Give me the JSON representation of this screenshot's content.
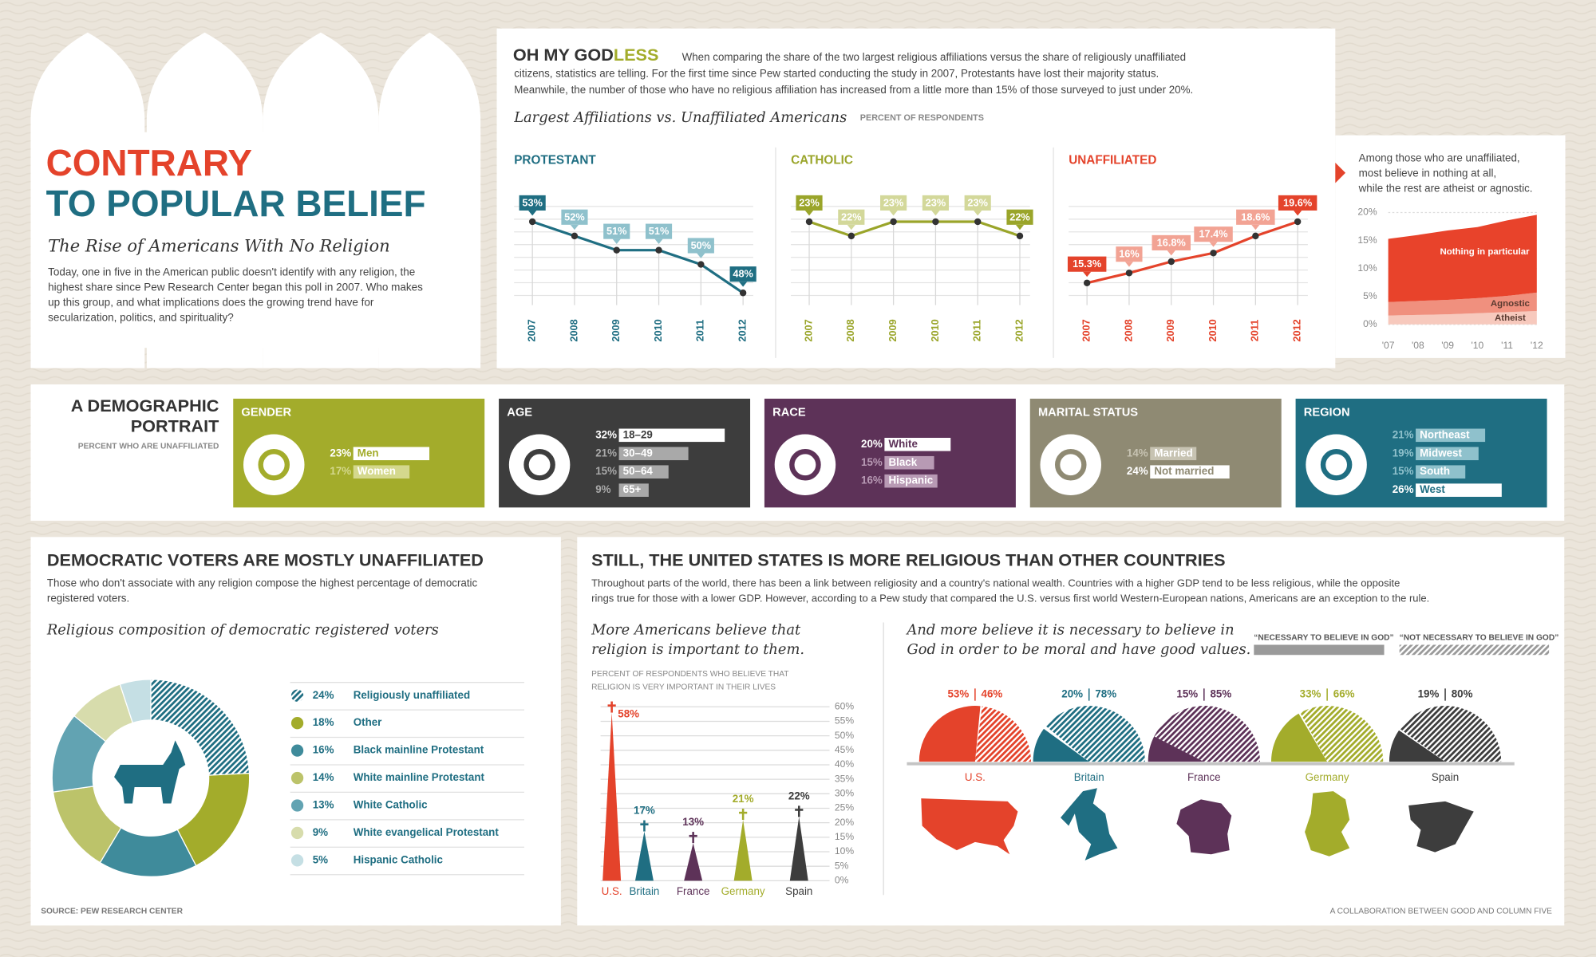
{
  "header": {
    "title_line1": "CONTRARY",
    "title_line2": "TO POPULAR BELIEF",
    "subtitle": "The Rise of Americans With No Religion",
    "intro": [
      "Today, one in five in the American public doesn't identify with any religion, the",
      "highest share since Pew Research Center began this poll in 2007. Who makes",
      "up this group, and what implications does the growing trend have for",
      "secularization, politics, and spirituality?"
    ]
  },
  "godless": {
    "heading": "OH MY GOD",
    "heading_accent": "LESS",
    "text": [
      "When comparing the share of the two largest religious affiliations versus the share of religiously unaffiliated",
      "citizens, statistics are telling. For the first time since Pew started conducting the study in 2007, Protestants have lost their majority status.",
      "Meanwhile, the number of those who have no religious affiliation has increased from a little more than 15% of those surveyed to just under 20%."
    ],
    "chart_title": "Largest Affiliations vs. Unaffiliated Americans",
    "chart_note": "PERCENT OF RESPONDENTS"
  },
  "demographics": {
    "title": [
      "A DEMOGRAPHIC",
      "PORTRAIT"
    ],
    "note": "PERCENT WHO ARE UNAFFILIATED"
  },
  "voters": {
    "heading": "DEMOCRATIC VOTERS ARE MOSTLY UNAFFILIATED",
    "text": [
      "Those who don't associate with any religion compose the highest percentage of democratic",
      "registered voters."
    ]
  },
  "world": {
    "heading": "STILL, THE UNITED STATES IS MORE RELIGIOUS THAN OTHER COUNTRIES",
    "text": [
      "Throughout parts of the world, there has been a link between religiosity and a country's national wealth. Countries with a higher GDP tend to be less religious, while the opposite",
      "rings true for those with a lower GDP. However, according to a Pew study that compared the U.S. versus first world Western-European nations, Americans are an exception to the rule."
    ]
  },
  "footer": {
    "source": "SOURCE:  PEW RESEARCH CENTER",
    "credit": "A COLLABORATION BETWEEN GOOD AND COLUMN FIVE"
  },
  "chart_data": [
    {
      "type": "line",
      "title": "PROTESTANT",
      "color": "#1f6e82",
      "light_color": "#8fc1cc",
      "categories": [
        "2007",
        "2008",
        "2009",
        "2010",
        "2011",
        "2012"
      ],
      "values": [
        53,
        52,
        51,
        51,
        50,
        48
      ],
      "value_labels": [
        "53%",
        "52%",
        "51%",
        "51%",
        "50%",
        "48%"
      ]
    },
    {
      "type": "line",
      "title": "CATHOLIC",
      "color": "#9aa52a",
      "light_color": "#d3d89a",
      "categories": [
        "2007",
        "2008",
        "2009",
        "2010",
        "2011",
        "2012"
      ],
      "values": [
        23,
        22,
        23,
        23,
        23,
        22
      ],
      "value_labels": [
        "23%",
        "22%",
        "23%",
        "23%",
        "23%",
        "22%"
      ]
    },
    {
      "type": "line",
      "title": "UNAFFILIATED",
      "color": "#e4432b",
      "light_color": "#f2a394",
      "categories": [
        "2007",
        "2008",
        "2009",
        "2010",
        "2011",
        "2012"
      ],
      "values": [
        15.3,
        16,
        16.8,
        17.4,
        18.6,
        19.6
      ],
      "value_labels": [
        "15.3%",
        "16%",
        "16.8%",
        "17.4%",
        "18.6%",
        "19.6%"
      ]
    },
    {
      "type": "area",
      "stacked": true,
      "title": [
        "Among those who are unaffiliated,",
        "most believe in nothing at all,",
        "while the rest are atheist or agnostic."
      ],
      "categories": [
        "'07",
        "'08",
        "'09",
        "'10",
        "'11",
        "'12"
      ],
      "ylim": [
        0,
        20
      ],
      "yticks": [
        {
          "value": 0,
          "label": "0%"
        },
        {
          "value": 5,
          "label": "5%"
        },
        {
          "value": 10,
          "label": "10%"
        },
        {
          "value": 15,
          "label": "15%"
        },
        {
          "value": 20,
          "label": "20%"
        }
      ],
      "series": [
        {
          "name": "Nothing in particular",
          "color": "#e8432b",
          "values": [
            11.3,
            11.8,
            12.4,
            12.7,
            13.5,
            13.9
          ]
        },
        {
          "name": "Agnostic",
          "color": "#f0907e",
          "values": [
            2.4,
            2.5,
            2.6,
            2.7,
            2.9,
            3.3
          ]
        },
        {
          "name": "Atheist",
          "color": "#f7c9bd",
          "values": [
            1.6,
            1.7,
            1.8,
            2.0,
            2.2,
            2.4
          ]
        }
      ]
    },
    {
      "type": "hbar",
      "title": "GENDER",
      "color": "#a3ac2b",
      "light_color": "#d4d88d",
      "categories": [
        "Men",
        "Women"
      ],
      "values": [
        23,
        17
      ],
      "value_labels": [
        "23%",
        "17%"
      ]
    },
    {
      "type": "hbar",
      "title": "AGE",
      "color": "#3d3d3d",
      "light_color": "#a9a9a9",
      "categories": [
        "18–29",
        "30–49",
        "50–64",
        "65+"
      ],
      "values": [
        32,
        21,
        15,
        9
      ],
      "value_labels": [
        "32%",
        "21%",
        "15%",
        "9%"
      ]
    },
    {
      "type": "hbar",
      "title": "RACE",
      "color": "#5d3258",
      "light_color": "#b89ab4",
      "categories": [
        "White",
        "Black",
        "Hispanic"
      ],
      "values": [
        20,
        15,
        16
      ],
      "value_labels": [
        "20%",
        "15%",
        "16%"
      ]
    },
    {
      "type": "hbar",
      "title": "MARITAL STATUS",
      "color": "#8f8a73",
      "light_color": "#c7c3b2",
      "categories": [
        "Married",
        "Not married"
      ],
      "values": [
        14,
        24
      ],
      "value_labels": [
        "14%",
        "24%"
      ]
    },
    {
      "type": "hbar",
      "title": "REGION",
      "color": "#1f6e82",
      "light_color": "#8fc1cc",
      "categories": [
        "Northeast",
        "Midwest",
        "South",
        "West"
      ],
      "values": [
        21,
        19,
        15,
        26
      ],
      "value_labels": [
        "21%",
        "19%",
        "15%",
        "26%"
      ]
    },
    {
      "type": "donut",
      "title": "Religious composition of democratic registered voters",
      "slices": [
        {
          "name": "Religiously unaffiliated",
          "value": 24,
          "value_label": "24%",
          "color": "#1f6e82",
          "pattern": "hatch"
        },
        {
          "name": "Other",
          "value": 18,
          "value_label": "18%",
          "color": "#a3ac2b"
        },
        {
          "name": "Black mainline Protestant",
          "value": 16,
          "value_label": "16%",
          "color": "#3f8b9b"
        },
        {
          "name": "White mainline Protestant",
          "value": 14,
          "value_label": "14%",
          "color": "#bcc36a"
        },
        {
          "name": "White Catholic",
          "value": 13,
          "value_label": "13%",
          "color": "#62a3b2"
        },
        {
          "name": "White evangelical Protestant",
          "value": 9,
          "value_label": "9%",
          "color": "#d7dcac"
        },
        {
          "name": "Hispanic Catholic",
          "value": 5,
          "value_label": "5%",
          "color": "#c5dfe4"
        }
      ]
    },
    {
      "type": "bar",
      "title": [
        "More Americans believe that",
        "religion is important to them."
      ],
      "note": [
        "PERCENT OF RESPONDENTS WHO BELIEVE THAT",
        "RELIGION IS VERY IMPORTANT IN THEIR LIVES"
      ],
      "categories": [
        "U.S.",
        "Britain",
        "France",
        "Germany",
        "Spain"
      ],
      "values": [
        58,
        17,
        13,
        21,
        22
      ],
      "value_labels": [
        "58%",
        "17%",
        "13%",
        "21%",
        "22%"
      ],
      "colors": [
        "#e4432b",
        "#1f6e82",
        "#5d3258",
        "#a3ac2b",
        "#3d3d3d"
      ],
      "ylim": [
        0,
        60
      ],
      "yticks": [
        {
          "value": 0,
          "label": "0%"
        },
        {
          "value": 5,
          "label": "5%"
        },
        {
          "value": 10,
          "label": "10%"
        },
        {
          "value": 15,
          "label": "15%"
        },
        {
          "value": 20,
          "label": "20%"
        },
        {
          "value": 25,
          "label": "25%"
        },
        {
          "value": 30,
          "label": "30%"
        },
        {
          "value": 35,
          "label": "35%"
        },
        {
          "value": 40,
          "label": "40%"
        },
        {
          "value": 45,
          "label": "45%"
        },
        {
          "value": 50,
          "label": "50%"
        },
        {
          "value": 55,
          "label": "55%"
        },
        {
          "value": 60,
          "label": "60%"
        }
      ],
      "grid": true
    },
    {
      "type": "half_pie",
      "title": [
        "And more believe it is necessary to believe in",
        "God in order to be moral and have good values."
      ],
      "categories": [
        "U.S.",
        "Britain",
        "France",
        "Germany",
        "Spain"
      ],
      "colors": [
        "#e4432b",
        "#1f6e82",
        "#5d3258",
        "#a3ac2b",
        "#3d3d3d"
      ],
      "series": [
        {
          "name": "“NECESSARY TO BELIEVE IN GOD”",
          "color": "#9a9a9a",
          "values": [
            53,
            20,
            15,
            33,
            19
          ],
          "value_labels": [
            "53%",
            "20%",
            "15%",
            "33%",
            "19%"
          ]
        },
        {
          "name": "“NOT NECESSARY TO BELIEVE IN GOD”",
          "color": "#9a9a9a",
          "pattern": "hatch",
          "values": [
            46,
            78,
            85,
            66,
            80
          ],
          "value_labels": [
            "46%",
            "78%",
            "85%",
            "66%",
            "80%"
          ]
        }
      ]
    }
  ]
}
